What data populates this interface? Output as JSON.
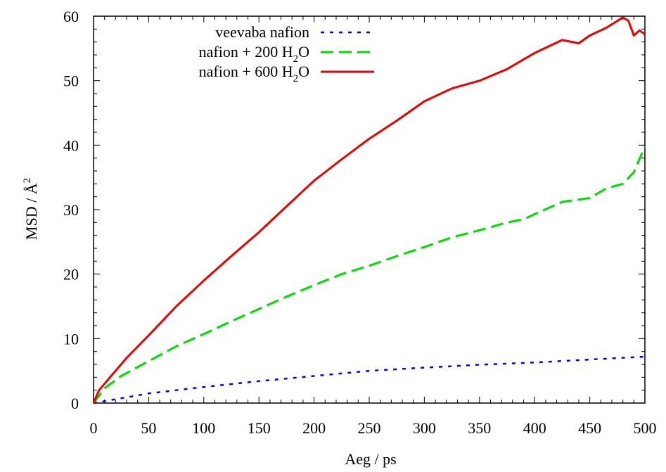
{
  "chart_data": {
    "type": "line",
    "title": "",
    "xlabel": "Aeg / ps",
    "ylabel_main": "MSD / Å",
    "ylabel_sup": "2",
    "xlim": [
      0,
      500
    ],
    "ylim": [
      0,
      60
    ],
    "x_ticks": [
      0,
      50,
      100,
      150,
      200,
      250,
      300,
      350,
      400,
      450,
      500
    ],
    "y_ticks": [
      0,
      10,
      20,
      30,
      40,
      50,
      60
    ],
    "grid": false,
    "legend_position": "top-center",
    "series": [
      {
        "name": "veevaba nafion",
        "name_parts": {
          "pre": "veevaba nafion",
          "sub": "",
          "post": ""
        },
        "color": "#0000ff",
        "dash": "dotted",
        "x": [
          0,
          50,
          100,
          150,
          200,
          250,
          300,
          350,
          400,
          450,
          500
        ],
        "y": [
          0,
          1.5,
          2.5,
          3.4,
          4.2,
          5.0,
          5.5,
          5.95,
          6.3,
          6.75,
          7.2
        ]
      },
      {
        "name": "nafion + 200 H2O",
        "name_parts": {
          "pre": "nafion + 200 H",
          "sub": "2",
          "post": "O"
        },
        "color": "#00dd00",
        "dash": "dashed",
        "x": [
          0,
          10,
          25,
          50,
          75,
          100,
          125,
          150,
          175,
          200,
          225,
          250,
          275,
          300,
          325,
          350,
          375,
          390,
          400,
          425,
          450,
          465,
          480,
          490,
          500
        ],
        "y": [
          0,
          2.3,
          4.2,
          6.5,
          8.8,
          10.7,
          12.7,
          14.6,
          16.5,
          18.3,
          20.0,
          21.3,
          22.8,
          24.2,
          25.7,
          26.8,
          28.0,
          28.5,
          29.3,
          31.2,
          31.8,
          33.3,
          34.0,
          35.8,
          39.8
        ]
      },
      {
        "name": "nafion + 600 H2O",
        "name_parts": {
          "pre": "nafion + 600 H",
          "sub": "2",
          "post": "O"
        },
        "color": "#ee0000",
        "dash": "solid",
        "x": [
          0,
          5,
          15,
          30,
          50,
          75,
          100,
          125,
          150,
          175,
          200,
          225,
          250,
          275,
          300,
          325,
          350,
          375,
          400,
          425,
          440,
          450,
          465,
          480,
          485,
          490,
          495,
          500
        ],
        "y": [
          0,
          2.0,
          4.0,
          7.0,
          10.5,
          15.0,
          19.0,
          22.8,
          26.5,
          30.5,
          34.5,
          37.8,
          41.0,
          43.8,
          46.8,
          48.8,
          50.0,
          51.8,
          54.3,
          56.3,
          55.8,
          57.0,
          58.2,
          59.8,
          59.3,
          57.0,
          57.8,
          57.2
        ]
      }
    ]
  }
}
